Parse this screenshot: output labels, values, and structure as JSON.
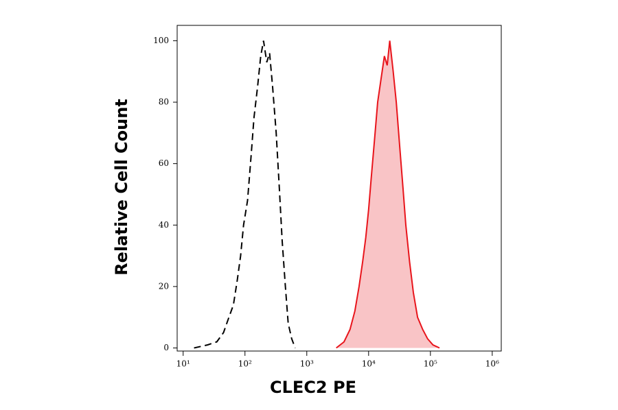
{
  "chart_data": {
    "type": "histogram-overlay",
    "xlabel": "CLEC2 PE",
    "ylabel": "Relative Cell Count",
    "xscale": "log",
    "xlim": [
      8,
      1400000
    ],
    "ylim": [
      -1,
      105
    ],
    "xticks": [
      {
        "value": 10,
        "label": "10¹"
      },
      {
        "value": 100,
        "label": "10²"
      },
      {
        "value": 1000,
        "label": "10³"
      },
      {
        "value": 10000,
        "label": "10⁴"
      },
      {
        "value": 100000,
        "label": "10⁵"
      },
      {
        "value": 1000000,
        "label": "10⁶"
      }
    ],
    "yticks": [
      0,
      20,
      40,
      60,
      80,
      100
    ],
    "series": [
      {
        "color": "#000000",
        "style": "dashed",
        "fill": null,
        "x": [
          15,
          25,
          35,
          45,
          55,
          65,
          75,
          85,
          95,
          110,
          125,
          140,
          160,
          180,
          200,
          225,
          250,
          280,
          320,
          360,
          400,
          450,
          500,
          570,
          650
        ],
        "values": [
          0,
          1,
          2,
          5,
          10,
          14,
          22,
          30,
          40,
          48,
          62,
          75,
          85,
          95,
          100,
          93,
          96,
          85,
          70,
          52,
          35,
          20,
          8,
          3,
          0
        ]
      },
      {
        "color": "#e8141b",
        "style": "solid",
        "fill": "#f9c4c6",
        "x": [
          3000,
          4000,
          5000,
          6000,
          7000,
          8000,
          9000,
          10000,
          11000,
          12500,
          14000,
          16000,
          18000,
          20000,
          22000,
          25000,
          28000,
          32000,
          36000,
          40000,
          46000,
          53000,
          62000,
          75000,
          90000,
          110000,
          140000
        ],
        "values": [
          0,
          2,
          6,
          12,
          20,
          28,
          36,
          45,
          55,
          68,
          80,
          88,
          95,
          92,
          100,
          90,
          80,
          65,
          52,
          40,
          28,
          18,
          10,
          6,
          3,
          1,
          0
        ]
      }
    ]
  }
}
